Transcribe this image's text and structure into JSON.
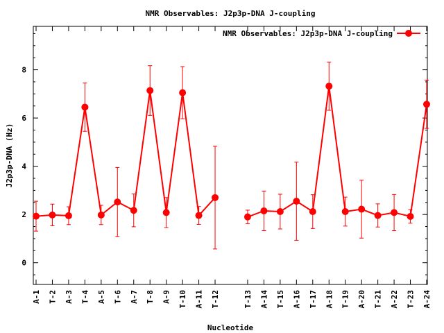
{
  "chart_data": {
    "type": "line",
    "title": "NMR Observables: J2p3p-DNA J-coupling",
    "xlabel": "Nucleotide",
    "ylabel": "J2p3p-DNA (Hz)",
    "ylim": [
      -0.9,
      9.8
    ],
    "yticks": [
      0,
      2,
      4,
      6,
      8
    ],
    "grid": false,
    "legend_position": "top-right",
    "series": [
      {
        "name": "NMR Observables: J2p3p-DNA J-coupling",
        "color": "#ff0000",
        "segments": [
          {
            "categories": [
              "A-1",
              "T-2",
              "A-3",
              "T-4",
              "A-5",
              "T-6",
              "A-7",
              "T-8",
              "A-9",
              "T-10",
              "A-11",
              "T-12"
            ],
            "values": [
              1.93,
              1.98,
              1.95,
              6.45,
              1.98,
              2.52,
              2.17,
              7.14,
              2.08,
              7.05,
              1.96,
              2.7
            ],
            "errors": [
              0.62,
              0.45,
              0.37,
              1.0,
              0.4,
              1.43,
              0.68,
              1.03,
              0.62,
              1.08,
              0.37,
              2.13
            ]
          },
          {
            "categories": [
              "T-13",
              "A-14",
              "T-15",
              "A-16",
              "T-17",
              "A-18",
              "T-19",
              "A-20",
              "T-21",
              "A-22",
              "T-23",
              "A-24"
            ],
            "values": [
              1.9,
              2.15,
              2.12,
              2.55,
              2.12,
              7.32,
              2.12,
              2.22,
              1.96,
              2.08,
              1.92,
              6.57
            ],
            "errors": [
              0.28,
              0.82,
              0.72,
              1.62,
              0.7,
              1.0,
              0.6,
              1.2,
              0.48,
              0.75,
              0.28,
              1.0
            ]
          }
        ]
      }
    ]
  }
}
